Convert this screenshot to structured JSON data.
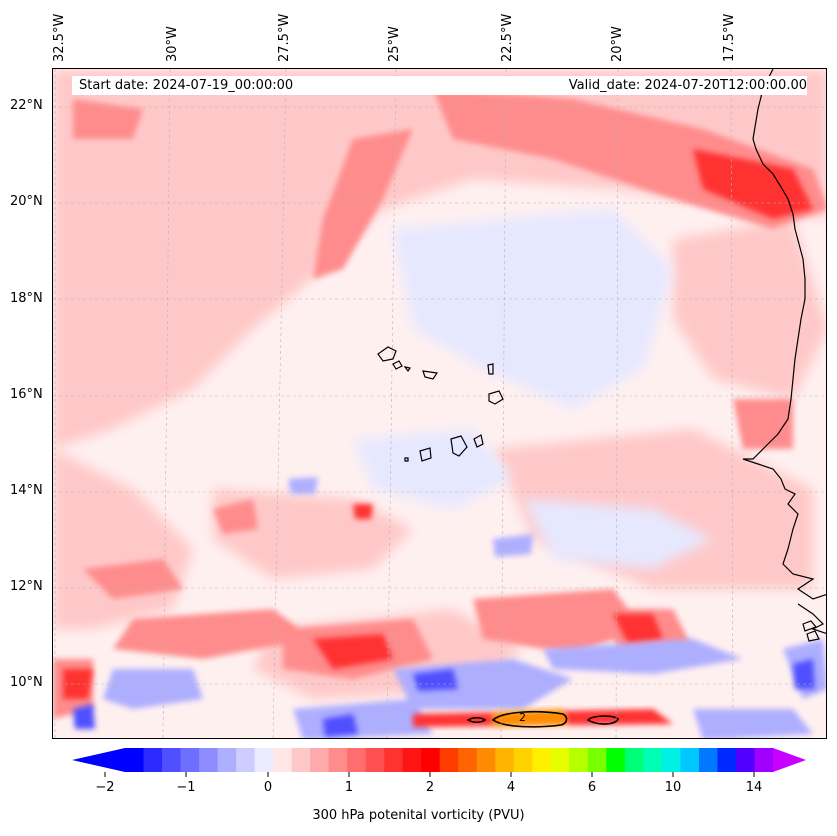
{
  "header": {
    "start_date": "Start date: 2024-07-19_00:00:00",
    "valid_date": "Valid_date: 2024-07-20T12:00:00.00"
  },
  "longitude_labels": [
    "32.5°W",
    "30°W",
    "27.5°W",
    "25°W",
    "22.5°W",
    "20°W",
    "17.5°W"
  ],
  "latitude_labels": [
    "22°N",
    "20°N",
    "18°N",
    "16°N",
    "14°N",
    "12°N",
    "10°N"
  ],
  "contour_labels": [
    "2"
  ],
  "colorbar": {
    "label": "300 hPa potenital vorticity (PVU)",
    "tick_labels": [
      "−2",
      "−1",
      "0",
      "1",
      "2",
      "4",
      "6",
      "10",
      "14"
    ],
    "colors": [
      "#0000ff",
      "#2a2aff",
      "#4f4fff",
      "#6e6eff",
      "#8c8cff",
      "#aeaeff",
      "#cdcdff",
      "#ececff",
      "#ffe6e6",
      "#ffc8c8",
      "#ffaaaa",
      "#ff8c8c",
      "#ff6e6e",
      "#ff5050",
      "#ff3232",
      "#ff1414",
      "#ff0000",
      "#ff3c00",
      "#ff6400",
      "#ff8c00",
      "#ffb400",
      "#ffd200",
      "#fff000",
      "#e6ff00",
      "#b4ff00",
      "#78ff00",
      "#00ff00",
      "#00ff78",
      "#00ffb4",
      "#00f0e6",
      "#00c8ff",
      "#0078ff",
      "#0028ff",
      "#5000ff",
      "#a000ff"
    ],
    "under_color": "#0000ff",
    "over_color": "#c800ff"
  },
  "shading_colors": {
    "background": "#fff0f0",
    "light_red": "#ffc8c8",
    "medium_red": "#ff8c8c",
    "strong_red": "#ff3232",
    "light_blue": "#e6e8ff",
    "medium_blue": "#aeaeff",
    "strong_blue": "#4f4fff",
    "orange": "#ff8c00"
  }
}
